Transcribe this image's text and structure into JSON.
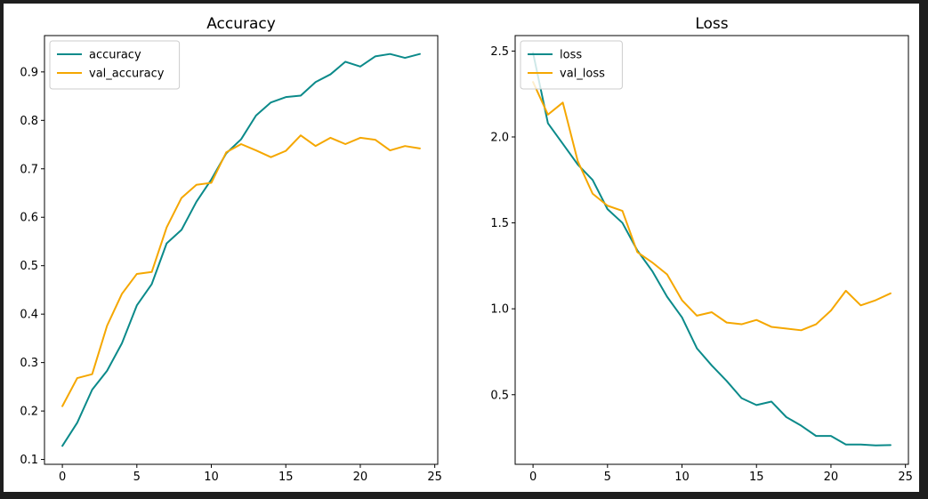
{
  "chart_data": [
    {
      "type": "line",
      "title": "Accuracy",
      "xlabel": "",
      "ylabel": "",
      "xlim": [
        -1.2,
        25.2
      ],
      "ylim": [
        0.09,
        0.975
      ],
      "xticks": [
        0,
        5,
        10,
        15,
        20,
        25
      ],
      "yticks": [
        0.1,
        0.2,
        0.3,
        0.4,
        0.5,
        0.6,
        0.7,
        0.8,
        0.9
      ],
      "grid": false,
      "legend": "top-left",
      "x": [
        0,
        1,
        2,
        3,
        4,
        5,
        6,
        7,
        8,
        9,
        10,
        11,
        12,
        13,
        14,
        15,
        16,
        17,
        18,
        19,
        20,
        21,
        22,
        23,
        24
      ],
      "series": [
        {
          "name": "accuracy",
          "color": "#0b8a8a",
          "values": [
            0.128,
            0.176,
            0.244,
            0.283,
            0.34,
            0.418,
            0.462,
            0.546,
            0.574,
            0.632,
            0.678,
            0.732,
            0.761,
            0.81,
            0.837,
            0.848,
            0.851,
            0.879,
            0.895,
            0.921,
            0.911,
            0.932,
            0.937,
            0.929,
            0.937
          ]
        },
        {
          "name": "val_accuracy",
          "color": "#f5a700",
          "values": [
            0.21,
            0.268,
            0.276,
            0.376,
            0.442,
            0.483,
            0.487,
            0.579,
            0.64,
            0.667,
            0.671,
            0.734,
            0.751,
            0.738,
            0.724,
            0.737,
            0.769,
            0.747,
            0.764,
            0.751,
            0.764,
            0.76,
            0.738,
            0.747,
            0.742
          ]
        }
      ]
    },
    {
      "type": "line",
      "title": "Loss",
      "xlabel": "",
      "ylabel": "",
      "xlim": [
        -1.2,
        25.2
      ],
      "ylim": [
        0.095,
        2.59
      ],
      "xticks": [
        0,
        5,
        10,
        15,
        20,
        25
      ],
      "yticks": [
        0.5,
        1.0,
        1.5,
        2.0,
        2.5
      ],
      "grid": false,
      "legend": "top-left",
      "x": [
        0,
        1,
        2,
        3,
        4,
        5,
        6,
        7,
        8,
        9,
        10,
        11,
        12,
        13,
        14,
        15,
        16,
        17,
        18,
        19,
        20,
        21,
        22,
        23,
        24
      ],
      "series": [
        {
          "name": "loss",
          "color": "#0b8a8a",
          "values": [
            2.49,
            2.08,
            1.96,
            1.84,
            1.75,
            1.58,
            1.5,
            1.34,
            1.22,
            1.07,
            0.95,
            0.77,
            0.67,
            0.58,
            0.48,
            0.44,
            0.46,
            0.37,
            0.32,
            0.26,
            0.26,
            0.21,
            0.21,
            0.205,
            0.207
          ]
        },
        {
          "name": "val_loss",
          "color": "#f5a700",
          "values": [
            2.32,
            2.13,
            2.2,
            1.86,
            1.67,
            1.6,
            1.57,
            1.33,
            1.27,
            1.2,
            1.05,
            0.96,
            0.98,
            0.92,
            0.91,
            0.935,
            0.895,
            0.885,
            0.875,
            0.91,
            0.99,
            1.105,
            1.02,
            1.05,
            1.09
          ]
        }
      ]
    }
  ]
}
